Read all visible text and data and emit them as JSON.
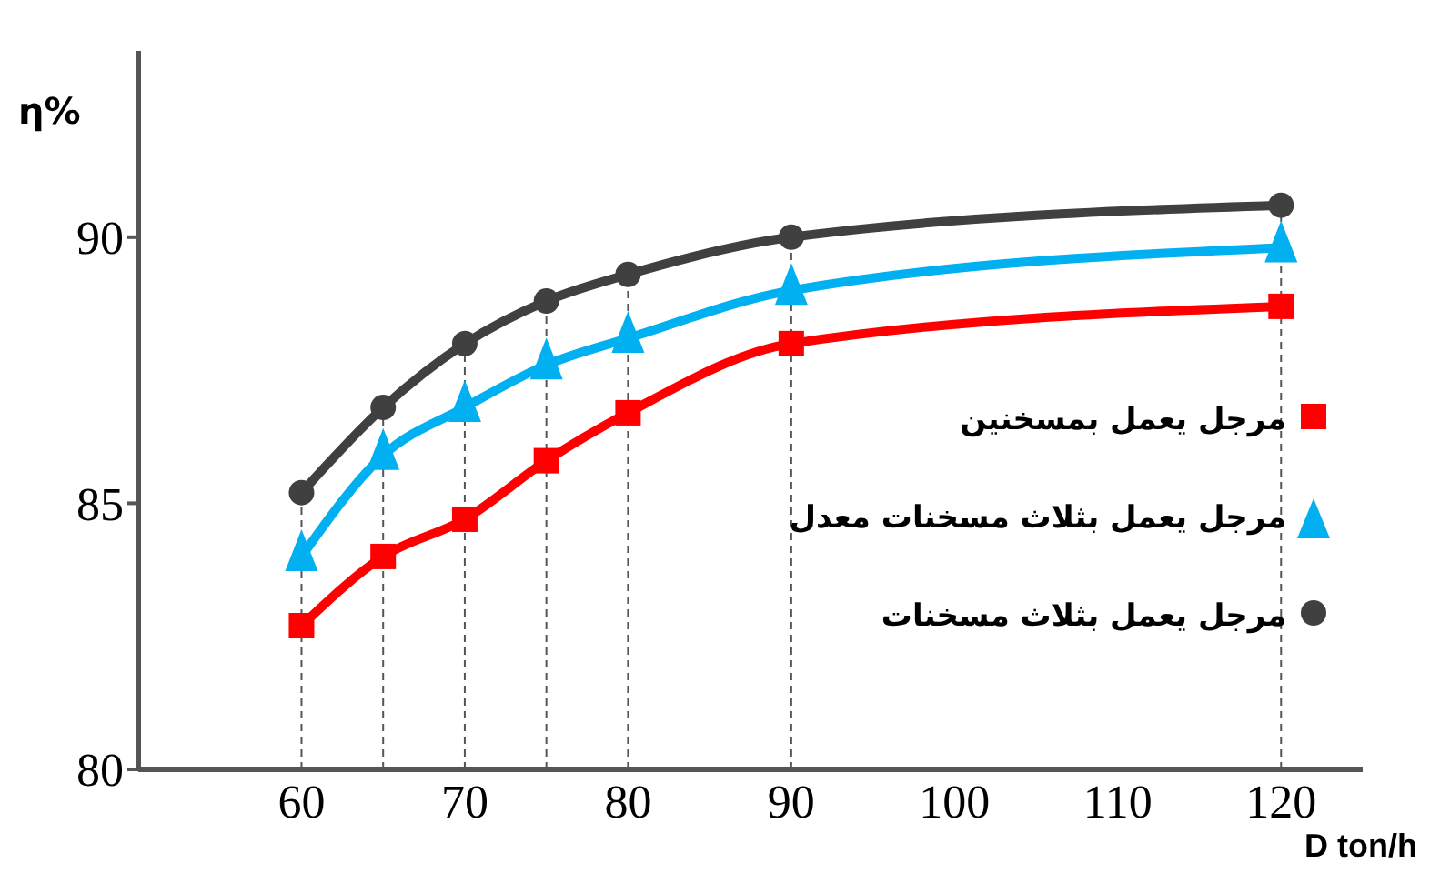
{
  "chart_data": {
    "type": "line",
    "xlabel": "D ton/h",
    "ylabel": "η%",
    "x": [
      60,
      65,
      70,
      75,
      80,
      90,
      120
    ],
    "series": [
      {
        "name": "مرجل يعمل بمسخنين",
        "color": "#ff0000",
        "marker": "square",
        "values": [
          82.7,
          84.0,
          84.7,
          85.8,
          86.7,
          88.0,
          88.7
        ]
      },
      {
        "name": "مرجل يعمل بثلاث مسخنات معدل",
        "color": "#00b0f0",
        "marker": "triangle",
        "values": [
          84.0,
          85.9,
          86.8,
          87.6,
          88.1,
          89.0,
          89.8
        ]
      },
      {
        "name": "مرجل يعمل بثلاث مسخنات",
        "color": "#404040",
        "marker": "circle",
        "values": [
          85.2,
          86.8,
          88.0,
          88.8,
          89.3,
          90.0,
          90.6
        ]
      }
    ],
    "xlim": [
      50,
      125
    ],
    "xticks": [
      60,
      70,
      80,
      90,
      100,
      110,
      120
    ],
    "ylim": [
      80,
      93.5
    ],
    "yticks": [
      80,
      85,
      90
    ],
    "grid": false,
    "legend": "right",
    "ref_lines": [
      {
        "axis": "x",
        "value": 60,
        "line_style": "dashed",
        "color": "#555555"
      },
      {
        "axis": "x",
        "value": 65,
        "line_style": "dashed",
        "color": "#555555"
      },
      {
        "axis": "x",
        "value": 70,
        "line_style": "dashed",
        "color": "#555555"
      },
      {
        "axis": "x",
        "value": 75,
        "line_style": "dashed",
        "color": "#555555"
      },
      {
        "axis": "x",
        "value": 80,
        "line_style": "dashed",
        "color": "#555555"
      },
      {
        "axis": "x",
        "value": 90,
        "line_style": "dashed",
        "color": "#555555"
      },
      {
        "axis": "x",
        "value": 120,
        "line_style": "dashed",
        "color": "#555555"
      }
    ]
  }
}
